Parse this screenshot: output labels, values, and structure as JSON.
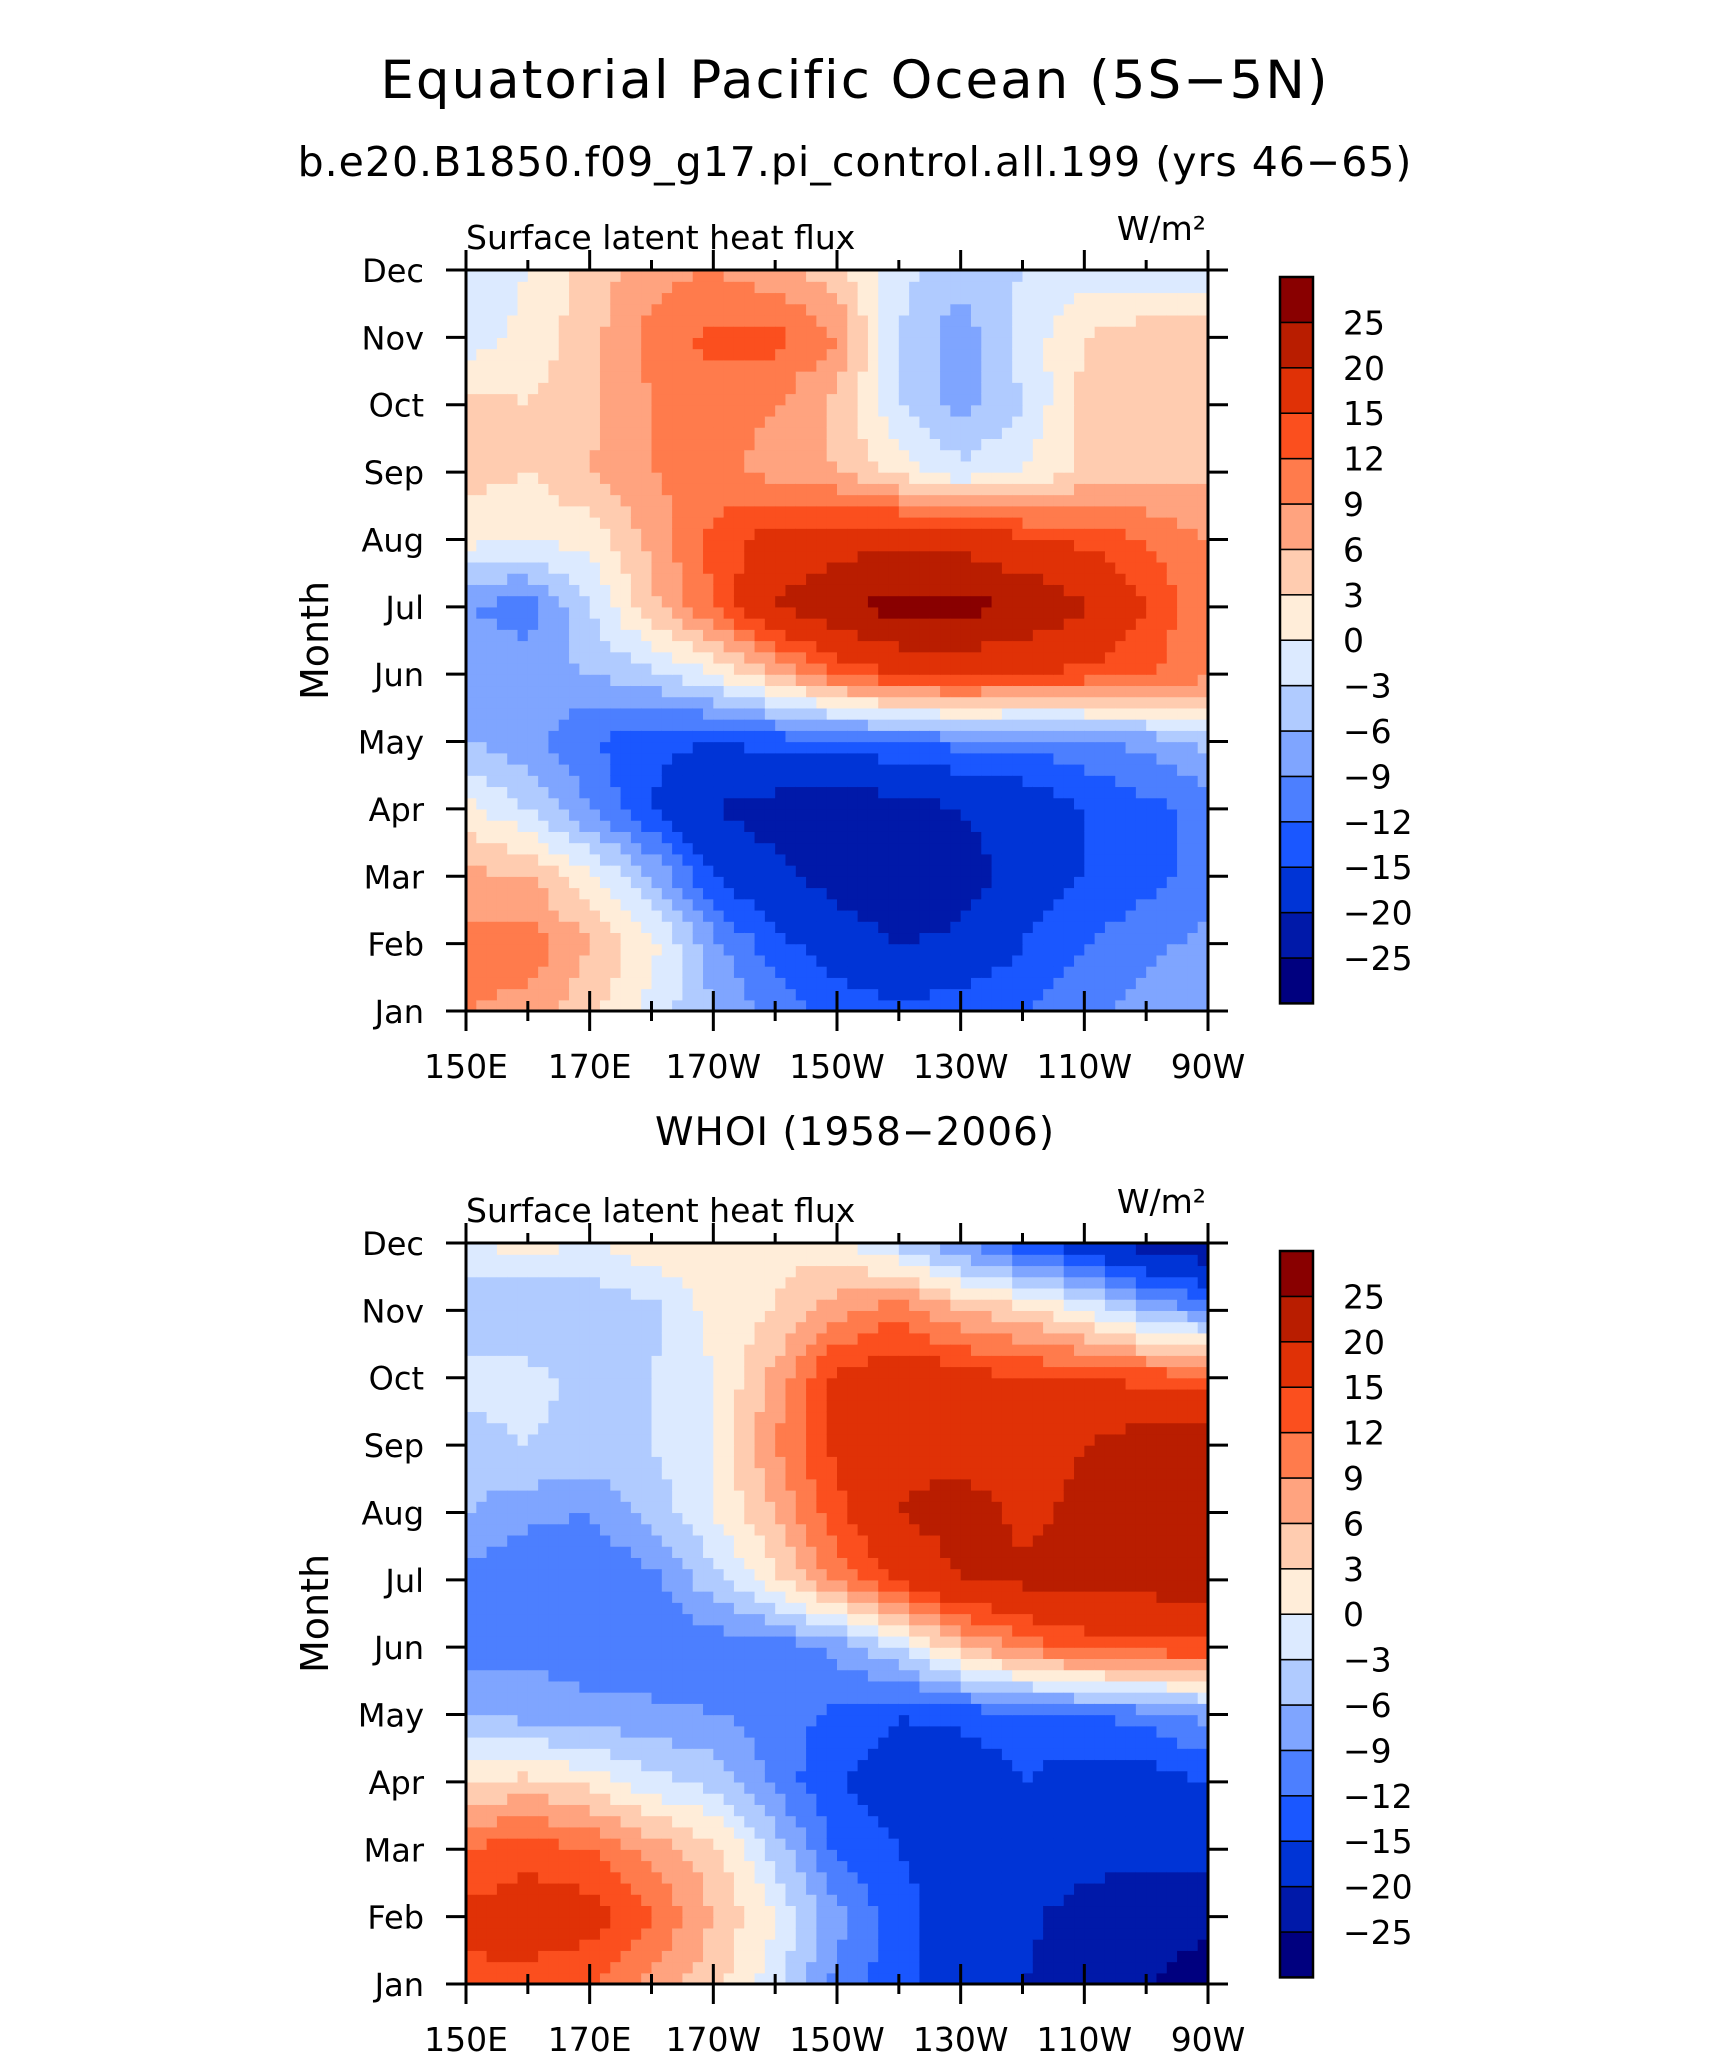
{
  "figure": {
    "title": "Equatorial Pacific Ocean (5S−5N)",
    "subtitle": "b.e20.B1850.f09_g17.pi_control.all.199 (yrs 46−65)",
    "second_panel_title": "WHOI (1958−2006)"
  },
  "colorbar": {
    "colors": [
      "#00007f",
      "#0019a9",
      "#0034d6",
      "#1a57ff",
      "#4c7fff",
      "#7fa5ff",
      "#b0cbff",
      "#dceaff",
      "#ffedd9",
      "#ffccb0",
      "#ffa37f",
      "#ff7b4c",
      "#fb4f1e",
      "#e03106",
      "#b91d00",
      "#890000"
    ],
    "labels": [
      "−25",
      "−20",
      "−15",
      "−12",
      "−9",
      "−6",
      "−3",
      "0",
      "3",
      "6",
      "9",
      "12",
      "15",
      "20",
      "25"
    ],
    "levels": [
      -25,
      -20,
      -15,
      -12,
      -9,
      -6,
      -3,
      0,
      3,
      6,
      9,
      12,
      15,
      20,
      25
    ]
  },
  "chart_data": [
    {
      "type": "heatmap",
      "title": "b.e20.B1850.f09_g17.pi_control.all.199 (yrs 46−65)",
      "left_label": "Surface latent heat flux",
      "right_label": "W/m²",
      "ylabel": "Month",
      "xticks": [
        "150E",
        "170E",
        "170W",
        "150W",
        "130W",
        "110W",
        "90W"
      ],
      "x_deg_east": [
        150,
        160,
        170,
        180,
        190,
        200,
        210,
        220,
        230,
        240,
        250,
        260,
        270
      ],
      "months": [
        "Jan",
        "Feb",
        "Mar",
        "Apr",
        "May",
        "Jun",
        "Jul",
        "Aug",
        "Sep",
        "Oct",
        "Nov",
        "Dec"
      ],
      "values": [
        [
          9,
          8,
          4,
          -1,
          -6,
          -10,
          -13,
          -14,
          -13,
          -12,
          -10,
          -8,
          -6
        ],
        [
          10,
          11,
          6,
          1,
          -8,
          -14,
          -17,
          -20,
          -19,
          -15,
          -12,
          -10,
          -8
        ],
        [
          7,
          6,
          1,
          -6,
          -15,
          -19,
          -22,
          -25,
          -22,
          -18,
          -15,
          -13,
          -11
        ],
        [
          1,
          -3,
          -9,
          -15,
          -20,
          -22,
          -24,
          -22,
          -20,
          -18,
          -15,
          -13,
          -11
        ],
        [
          -6,
          -8,
          -12,
          -14,
          -15,
          -14,
          -13,
          -12,
          -11,
          -11,
          -10,
          -8,
          -5
        ],
        [
          -6,
          -7,
          -6,
          -4,
          0,
          6,
          12,
          15,
          16,
          15,
          14,
          12,
          10
        ],
        [
          -9,
          -11,
          -3,
          5,
          12,
          20,
          24,
          27,
          27,
          24,
          21,
          15,
          9
        ],
        [
          1,
          0,
          1,
          7,
          13,
          17,
          18,
          19,
          18,
          16,
          14,
          12,
          9
        ],
        [
          4,
          3,
          6,
          9,
          10,
          8,
          6,
          2,
          -2,
          0,
          4,
          5,
          5
        ],
        [
          4,
          3,
          5,
          9,
          10,
          9,
          5,
          -3,
          -7,
          -3,
          4,
          5,
          5
        ],
        [
          -2,
          1,
          5,
          10,
          13,
          13,
          9,
          -3,
          -8,
          -2,
          3,
          5,
          6
        ],
        [
          -2,
          0,
          4,
          8,
          9,
          7,
          4,
          -2,
          -5,
          -3,
          -1,
          -2,
          -2
        ]
      ]
    },
    {
      "type": "heatmap",
      "title": "WHOI (1958−2006)",
      "left_label": "Surface latent heat flux",
      "right_label": "W/m²",
      "ylabel": "Month",
      "xticks": [
        "150E",
        "170E",
        "170W",
        "150W",
        "130W",
        "110W",
        "90W"
      ],
      "x_deg_east": [
        150,
        160,
        170,
        180,
        190,
        200,
        210,
        220,
        230,
        240,
        250,
        260,
        270
      ],
      "months": [
        "Jan",
        "Feb",
        "Mar",
        "Apr",
        "May",
        "Jun",
        "Jul",
        "Aug",
        "Sep",
        "Oct",
        "Nov",
        "Dec"
      ],
      "values": [
        [
          14,
          14,
          12,
          8,
          4,
          -2,
          -10,
          -14,
          -18,
          -20,
          -23,
          -25,
          -27
        ],
        [
          16,
          17,
          17,
          12,
          6,
          0,
          -8,
          -14,
          -17,
          -19,
          -22,
          -23,
          -24
        ],
        [
          12,
          14,
          12,
          8,
          4,
          -4,
          -13,
          -15,
          -16,
          -17,
          -18,
          -19,
          -18
        ],
        [
          3,
          4,
          2,
          -2,
          -4,
          -10,
          -15,
          -17,
          -18,
          -15,
          -17,
          -17,
          -15
        ],
        [
          -6,
          -7,
          -8,
          -8,
          -9,
          -10,
          -13,
          -15,
          -14,
          -13,
          -12,
          -11,
          -8
        ],
        [
          -10,
          -10,
          -11,
          -12,
          -11,
          -11,
          -8,
          -3,
          5,
          10,
          13,
          14,
          14
        ],
        [
          -10,
          -12,
          -12,
          -10,
          -4,
          2,
          10,
          16,
          20,
          21,
          21,
          22,
          22
        ],
        [
          -6,
          -8,
          -9,
          -5,
          0,
          6,
          14,
          20,
          22,
          19,
          21,
          23,
          24
        ],
        [
          -4,
          -3,
          -4,
          -3,
          0,
          9,
          16,
          19,
          18,
          18,
          20,
          23,
          25
        ],
        [
          -2,
          -2,
          -4,
          -3,
          0,
          7,
          16,
          18,
          17,
          15,
          15,
          14,
          13
        ],
        [
          -6,
          -6,
          -6,
          -4,
          1,
          3,
          8,
          11,
          6,
          4,
          0,
          -6,
          -9
        ],
        [
          0,
          1,
          0,
          2,
          3,
          2,
          1,
          -4,
          -9,
          -14,
          -18,
          -22,
          -24
        ]
      ]
    }
  ]
}
